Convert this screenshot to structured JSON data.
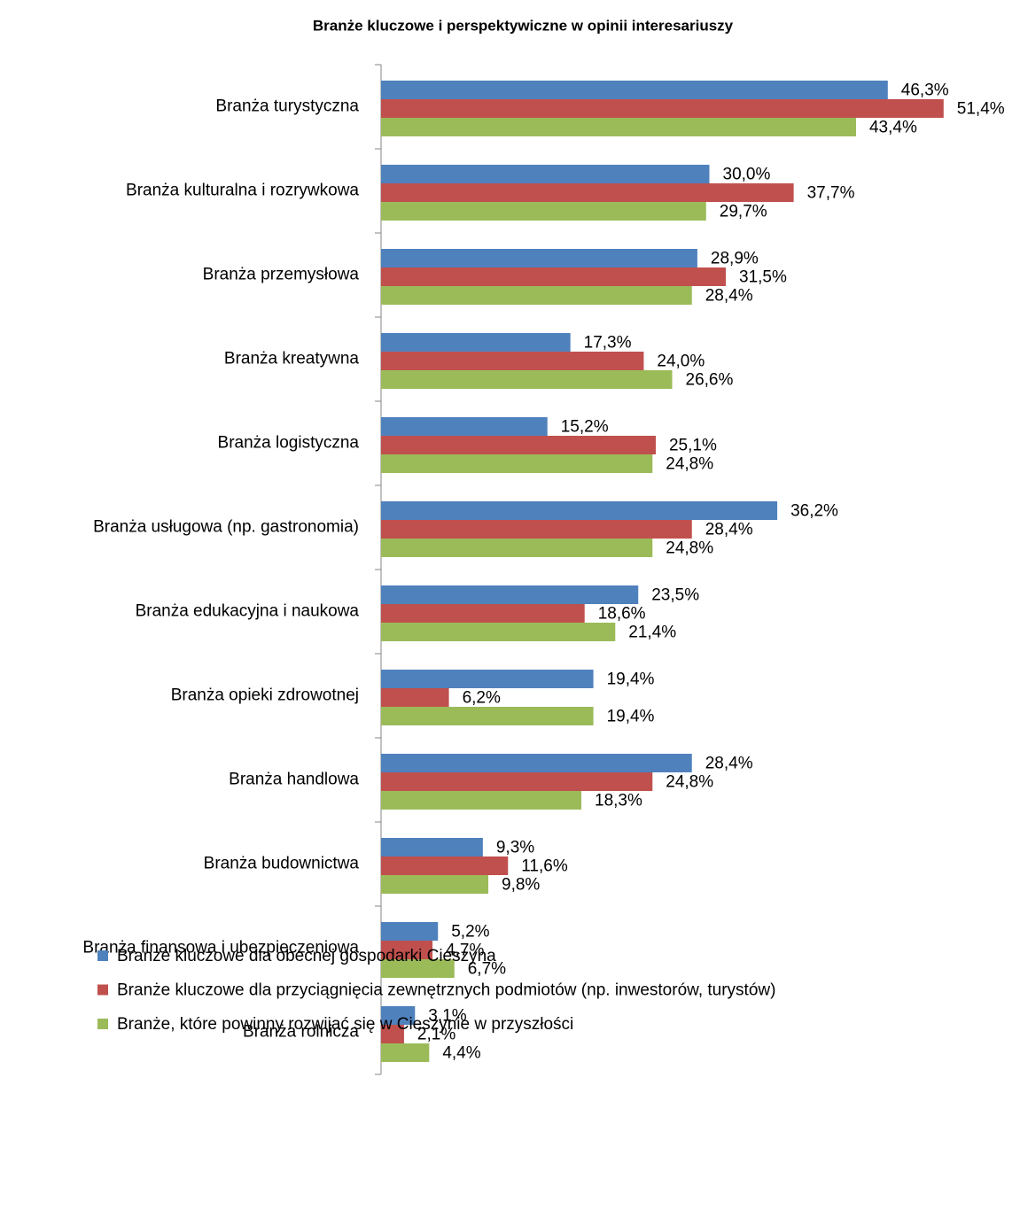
{
  "chart_data": {
    "type": "bar",
    "orientation": "horizontal",
    "title": "Branże kluczowe i perspektywiczne w opinii interesariuszy",
    "categories": [
      "Branża turystyczna",
      "Branża kulturalna i rozrywkowa",
      "Branża przemysłowa",
      "Branża kreatywna",
      "Branża logistyczna",
      "Branża usługowa (np. gastronomia)",
      "Branża edukacyjna i naukowa",
      "Branża opieki zdrowotnej",
      "Branża handlowa",
      "Branża budownictwa",
      "Branża finansowa i ubezpieczeniowa",
      "Branża rolnicza"
    ],
    "series": [
      {
        "name": "Branże kluczowe dla obecnej gospodarki Cieszyna",
        "color": "#4f81bd",
        "values": [
          46.3,
          30.0,
          28.9,
          17.3,
          15.2,
          36.2,
          23.5,
          19.4,
          28.4,
          9.3,
          5.2,
          3.1
        ],
        "value_labels": [
          "46,3%",
          "30,0%",
          "28,9%",
          "17,3%",
          "15,2%",
          "36,2%",
          "23,5%",
          "19,4%",
          "28,4%",
          "9,3%",
          "5,2%",
          "3,1%"
        ]
      },
      {
        "name": "Branże kluczowe dla przyciągnięcia zewnętrznych podmiotów (np. inwestorów, turystów)",
        "color": "#c0504d",
        "values": [
          51.4,
          37.7,
          31.5,
          24.0,
          25.1,
          28.4,
          18.6,
          6.2,
          24.8,
          11.6,
          4.7,
          2.1
        ],
        "value_labels": [
          "51,4%",
          "37,7%",
          "31,5%",
          "24,0%",
          "25,1%",
          "28,4%",
          "18,6%",
          "6,2%",
          "24,8%",
          "11,6%",
          "4,7%",
          "2,1%"
        ]
      },
      {
        "name": "Branże, które powinny rozwijać się w Cieszynie w przyszłości",
        "color": "#9bbb59",
        "values": [
          43.4,
          29.7,
          28.4,
          26.6,
          24.8,
          24.8,
          21.4,
          19.4,
          18.3,
          9.8,
          6.7,
          4.4
        ],
        "value_labels": [
          "43,4%",
          "29,7%",
          "28,4%",
          "26,6%",
          "24,8%",
          "24,8%",
          "21,4%",
          "19,4%",
          "18,3%",
          "9,8%",
          "6,7%",
          "4,4%"
        ]
      }
    ]
  }
}
